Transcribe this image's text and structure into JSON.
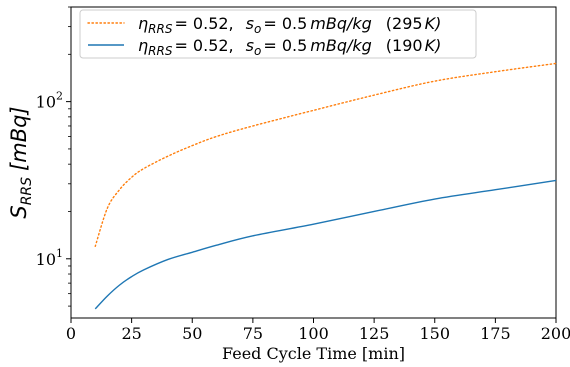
{
  "chart_data": {
    "type": "line",
    "title": "",
    "xlabel": "Feed Cycle Time [min]",
    "ylabel": "S_RRS [mBq]",
    "ylabel_main": "S",
    "ylabel_sub": "RRS",
    "ylabel_unit": "[mBq]",
    "xlim": [
      0,
      200
    ],
    "ylim": [
      4.2,
      400
    ],
    "yscale": "log",
    "grid": false,
    "legend_position": "top-left",
    "x_ticks": [
      0,
      25,
      50,
      75,
      100,
      125,
      150,
      175,
      200
    ],
    "x_tick_labels": [
      "0",
      "25",
      "50",
      "75",
      "100",
      "125",
      "150",
      "175",
      "200"
    ],
    "y_ticks": [
      10,
      100
    ],
    "y_tick_base": "10",
    "y_tick_exponents": [
      "1",
      "2"
    ],
    "series": [
      {
        "name": "η_RRS = 0.52, s_o = 0.5 mBq/kg (295 K)",
        "legend": {
          "eta_main": "η",
          "eta_sub": "RRS",
          "eta_val": "= 0.52,",
          "s_main": "s",
          "s_sub": "o",
          "s_val": "= 0.5",
          "unit": "mBq/kg",
          "temp": "(295",
          "temp_unit": "K)"
        },
        "color": "#ff7f0e",
        "style": "dotted",
        "x": [
          10,
          15,
          20,
          25,
          30,
          40,
          50,
          60,
          75,
          100,
          125,
          150,
          175,
          200
        ],
        "y": [
          12.0,
          21.0,
          27.5,
          33.0,
          37.5,
          45.0,
          52.5,
          60.0,
          70.0,
          88.0,
          110.0,
          135.0,
          155.0,
          175.0
        ]
      },
      {
        "name": "η_RRS = 0.52, s_o = 0.5 mBq/kg (190 K)",
        "legend": {
          "eta_main": "η",
          "eta_sub": "RRS",
          "eta_val": "= 0.52,",
          "s_main": "s",
          "s_sub": "o",
          "s_val": "= 0.5",
          "unit": "mBq/kg",
          "temp": "(190",
          "temp_unit": "K)"
        },
        "color": "#1f77b4",
        "style": "solid",
        "x": [
          10,
          15,
          20,
          25,
          30,
          40,
          50,
          60,
          75,
          100,
          125,
          150,
          175,
          200
        ],
        "y": [
          4.8,
          5.8,
          6.8,
          7.7,
          8.5,
          9.9,
          11.0,
          12.2,
          14.0,
          16.6,
          20.0,
          24.0,
          27.5,
          31.5
        ]
      }
    ]
  }
}
